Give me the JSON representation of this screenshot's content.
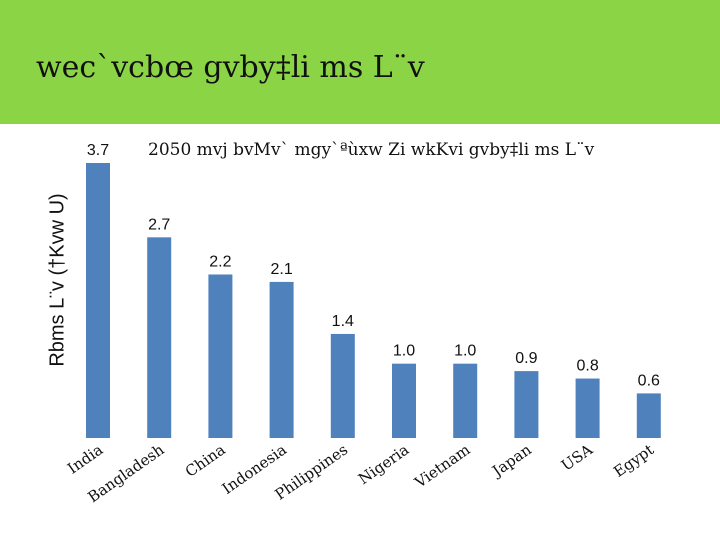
{
  "header": {
    "title": "wec`vcbœ gvby‡li ms L¨v"
  },
  "chart_data": {
    "type": "bar",
    "title": "2050 mvj bvMv` mgy`ªùxw Zi wkKvi gvby‡li ms L¨v",
    "xlabel": "",
    "ylabel": "Rbms L¨v (†Kvw U)",
    "categories": [
      "India",
      "Bangladesh",
      "China",
      "Indonesia",
      "Philippines",
      "Nigeria",
      "Vietnam",
      "Japan",
      "USA",
      "Egypt"
    ],
    "values": [
      3.7,
      2.7,
      2.2,
      2.1,
      1.4,
      1.0,
      1.0,
      0.9,
      0.8,
      0.6
    ],
    "value_labels": [
      "3.7",
      "2.7",
      "2.2",
      "2.1",
      "1.4",
      "1.0",
      "1.0",
      "0.9",
      "0.8",
      "0.6"
    ],
    "ylim": [
      0,
      3.7
    ],
    "grid": false,
    "bar_color": "#4f81bd"
  }
}
